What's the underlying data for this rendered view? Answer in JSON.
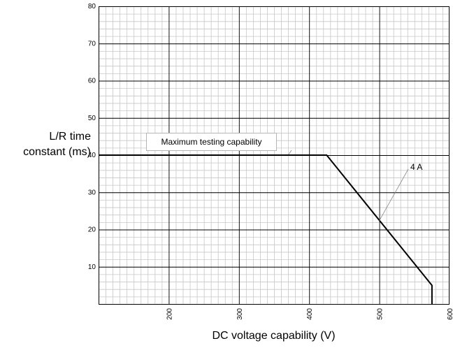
{
  "chart_data": {
    "type": "line",
    "xlabel": "DC voltage capability (V)",
    "ylabel_lines": [
      "L/R time",
      "constant (ms)"
    ],
    "xlim": [
      100,
      600
    ],
    "ylim": [
      0,
      80
    ],
    "x_ticks": [
      200,
      300,
      400,
      500,
      600
    ],
    "y_ticks": [
      10,
      20,
      30,
      40,
      50,
      60,
      70,
      80
    ],
    "grid": true,
    "series": [
      {
        "name": "4 A",
        "x": [
          100,
          425,
          575,
          575
        ],
        "y": [
          40,
          40,
          5,
          0
        ]
      }
    ],
    "annotations": [
      {
        "text": "Maximum testing capability",
        "x": 335,
        "y": 40
      },
      {
        "text": "4 A",
        "x": 500,
        "y": 22
      }
    ]
  }
}
